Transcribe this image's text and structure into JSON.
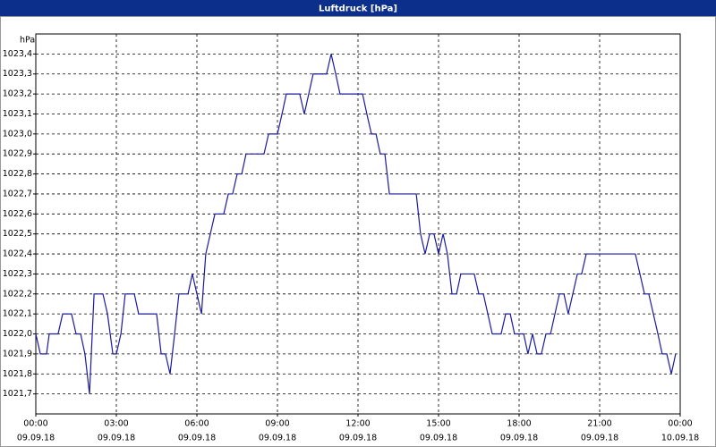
{
  "chart_data": {
    "type": "line",
    "title": "Luftdruck [hPa]",
    "y_unit": "hPa",
    "xlim": [
      0,
      24
    ],
    "xticks": [
      {
        "value": 0,
        "label": "00:00"
      },
      {
        "value": 3,
        "label": "03:00"
      },
      {
        "value": 6,
        "label": "06:00"
      },
      {
        "value": 9,
        "label": "09:00"
      },
      {
        "value": 12,
        "label": "12:00"
      },
      {
        "value": 15,
        "label": "15:00"
      },
      {
        "value": 18,
        "label": "18:00"
      },
      {
        "value": 21,
        "label": "21:00"
      },
      {
        "value": 24,
        "label": "00:00"
      }
    ],
    "xtick_dates": [
      "09.09.18",
      "09.09.18",
      "09.09.18",
      "09.09.18",
      "09.09.18",
      "09.09.18",
      "09.09.18",
      "09.09.18",
      "10.09.18"
    ],
    "ylim": [
      1021.6,
      1023.5
    ],
    "yticks": [
      {
        "value": 1021.7,
        "label": "1021,7"
      },
      {
        "value": 1021.8,
        "label": "1021,8"
      },
      {
        "value": 1021.9,
        "label": "1021,9"
      },
      {
        "value": 1022.0,
        "label": "1022,0"
      },
      {
        "value": 1022.1,
        "label": "1022,1"
      },
      {
        "value": 1022.2,
        "label": "1022,2"
      },
      {
        "value": 1022.3,
        "label": "1022,3"
      },
      {
        "value": 1022.4,
        "label": "1022,4"
      },
      {
        "value": 1022.5,
        "label": "1022,5"
      },
      {
        "value": 1022.6,
        "label": "1022,6"
      },
      {
        "value": 1022.7,
        "label": "1022,7"
      },
      {
        "value": 1022.8,
        "label": "1022,8"
      },
      {
        "value": 1022.9,
        "label": "1022,9"
      },
      {
        "value": 1023.0,
        "label": "1023,0"
      },
      {
        "value": 1023.1,
        "label": "1023,1"
      },
      {
        "value": 1023.2,
        "label": "1023,2"
      },
      {
        "value": 1023.3,
        "label": "1023,3"
      },
      {
        "value": 1023.4,
        "label": "1023,4"
      }
    ],
    "grid": true,
    "color": "#1a1a9e",
    "x": [
      0,
      0.17,
      0.4,
      0.5,
      0.83,
      1,
      1.33,
      1.5,
      1.67,
      1.83,
      2,
      2.17,
      2.5,
      2.67,
      2.87,
      3,
      3.17,
      3.33,
      3.67,
      3.83,
      4.5,
      4.67,
      4.83,
      5,
      5.17,
      5.33,
      5.67,
      5.83,
      6,
      6.17,
      6.33,
      6.5,
      6.67,
      7,
      7.17,
      7.33,
      7.5,
      7.67,
      7.83,
      8.5,
      8.67,
      9,
      9.17,
      9.33,
      9.83,
      10,
      10.33,
      10.83,
      11,
      11.17,
      11.33,
      12.17,
      12.33,
      12.5,
      12.67,
      12.83,
      13,
      13.17,
      14.17,
      14.33,
      14.5,
      14.67,
      14.83,
      15,
      15.17,
      15.33,
      15.5,
      15.67,
      15.83,
      16.33,
      16.5,
      16.67,
      17,
      17.33,
      17.5,
      17.67,
      17.83,
      18.17,
      18.33,
      18.5,
      18.67,
      18.83,
      19,
      19.17,
      19.5,
      19.67,
      19.83,
      20,
      20.17,
      20.33,
      20.5,
      22.33,
      22.5,
      22.67,
      22.83,
      23,
      23.17,
      23.33,
      23.5,
      23.67,
      23.83
    ],
    "values": [
      1022.0,
      1021.9,
      1021.9,
      1022.0,
      1022.0,
      1022.1,
      1022.1,
      1022.0,
      1022.0,
      1021.9,
      1021.7,
      1022.2,
      1022.2,
      1022.1,
      1021.9,
      1021.9,
      1022.0,
      1022.2,
      1022.2,
      1022.1,
      1022.1,
      1021.9,
      1021.9,
      1021.8,
      1022.0,
      1022.2,
      1022.2,
      1022.3,
      1022.2,
      1022.1,
      1022.4,
      1022.5,
      1022.6,
      1022.6,
      1022.7,
      1022.7,
      1022.8,
      1022.8,
      1022.9,
      1022.9,
      1023.0,
      1023.0,
      1023.1,
      1023.2,
      1023.2,
      1023.1,
      1023.3,
      1023.3,
      1023.4,
      1023.3,
      1023.2,
      1023.2,
      1023.1,
      1023.0,
      1023.0,
      1022.9,
      1022.9,
      1022.7,
      1022.7,
      1022.5,
      1022.4,
      1022.5,
      1022.5,
      1022.4,
      1022.5,
      1022.4,
      1022.2,
      1022.2,
      1022.3,
      1022.3,
      1022.2,
      1022.2,
      1022.0,
      1022.0,
      1022.1,
      1022.1,
      1022.0,
      1022.0,
      1021.9,
      1022.0,
      1021.9,
      1021.9,
      1022.0,
      1022.0,
      1022.2,
      1022.2,
      1022.1,
      1022.2,
      1022.3,
      1022.3,
      1022.4,
      1022.4,
      1022.3,
      1022.2,
      1022.2,
      1022.1,
      1022.0,
      1021.9,
      1021.9,
      1021.8,
      1021.9
    ]
  }
}
